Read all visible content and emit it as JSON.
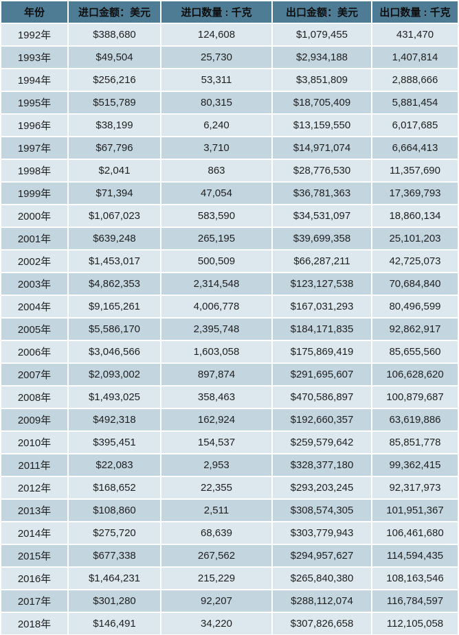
{
  "colors": {
    "header_bg": "#4e7c95",
    "row_light": "#dce8ee",
    "row_dark": "#c3d5df",
    "header_text": "#0d0d0d",
    "cell_text": "#1f1f1f",
    "separator": "#ffffff"
  },
  "chart_data": {
    "type": "table",
    "title": "",
    "columns": [
      "年份",
      "进口金额：美元",
      "进口数量 : 千克",
      "出口金额：美元",
      "出口数量 : 千克"
    ],
    "rows": [
      [
        "1992年",
        "$388,680",
        "124,608",
        "$1,079,455",
        "431,470"
      ],
      [
        "1993年",
        "$49,504",
        "25,730",
        "$2,934,188",
        "1,407,814"
      ],
      [
        "1994年",
        "$256,216",
        "53,311",
        "$3,851,809",
        "2,888,666"
      ],
      [
        "1995年",
        "$515,789",
        "80,315",
        "$18,705,409",
        "5,881,454"
      ],
      [
        "1996年",
        "$38,199",
        "6,240",
        "$13,159,550",
        "6,017,685"
      ],
      [
        "1997年",
        "$67,796",
        "3,710",
        "$14,971,074",
        "6,664,413"
      ],
      [
        "1998年",
        "$2,041",
        "863",
        "$28,776,530",
        "11,357,690"
      ],
      [
        "1999年",
        "$71,394",
        "47,054",
        "$36,781,363",
        "17,369,793"
      ],
      [
        "2000年",
        "$1,067,023",
        "583,590",
        "$34,531,097",
        "18,860,134"
      ],
      [
        "2001年",
        "$639,248",
        "265,195",
        "$39,699,358",
        "25,101,203"
      ],
      [
        "2002年",
        "$1,453,017",
        "500,509",
        "$66,287,211",
        "42,725,073"
      ],
      [
        "2003年",
        "$4,862,353",
        "2,314,548",
        "$123,127,538",
        "70,684,840"
      ],
      [
        "2004年",
        "$9,165,261",
        "4,006,778",
        "$167,031,293",
        "80,496,599"
      ],
      [
        "2005年",
        "$5,586,170",
        "2,395,748",
        "$184,171,835",
        "92,862,917"
      ],
      [
        "2006年",
        "$3,046,566",
        "1,603,058",
        "$175,869,419",
        "85,655,560"
      ],
      [
        "2007年",
        "$2,093,002",
        "897,874",
        "$291,695,607",
        "106,628,620"
      ],
      [
        "2008年",
        "$1,493,025",
        "358,463",
        "$470,586,897",
        "100,879,687"
      ],
      [
        "2009年",
        "$492,318",
        "162,924",
        "$192,660,357",
        "63,619,886"
      ],
      [
        "2010年",
        "$395,451",
        "154,537",
        "$259,579,642",
        "85,851,778"
      ],
      [
        "2011年",
        "$22,083",
        "2,953",
        "$328,377,180",
        "99,362,415"
      ],
      [
        "2012年",
        "$168,652",
        "22,355",
        "$293,203,245",
        "92,317,973"
      ],
      [
        "2013年",
        "$108,860",
        "2,511",
        "$308,574,305",
        "101,951,367"
      ],
      [
        "2014年",
        "$275,720",
        "68,639",
        "$303,779,943",
        "106,461,680"
      ],
      [
        "2015年",
        "$677,338",
        "267,562",
        "$294,957,627",
        "114,594,435"
      ],
      [
        "2016年",
        "$1,464,231",
        "215,229",
        "$265,840,380",
        "108,163,546"
      ],
      [
        "2017年",
        "$301,280",
        "92,207",
        "$288,112,074",
        "116,784,597"
      ],
      [
        "2018年",
        "$146,491",
        "34,220",
        "$307,826,658",
        "112,105,058"
      ]
    ]
  }
}
